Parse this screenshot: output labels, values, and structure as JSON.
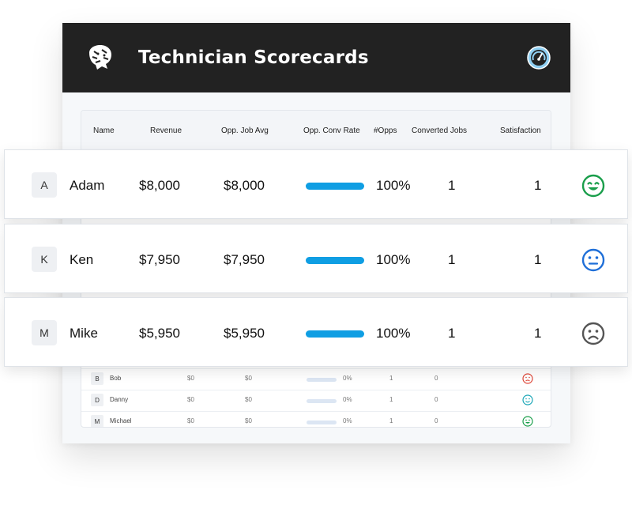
{
  "app": {
    "title": "Technician Scorecards",
    "logo_icon": "tiger-head-icon",
    "header_icon": "speedometer-icon"
  },
  "table": {
    "headers": {
      "name": "Name",
      "revenue": "Revenue",
      "avg": "Opp. Job Avg",
      "conv_rate": "Opp. Conv Rate",
      "opps": "#Opps",
      "converted": "Converted Jobs",
      "satisfaction": "Satisfaction"
    },
    "rows": [
      {
        "initial": "B",
        "name": "Bob",
        "revenue": "$0",
        "avg": "$0",
        "rate": "0%",
        "opps": "1",
        "converted": "0",
        "satisfaction": "sad",
        "rate_fraction": 0
      },
      {
        "initial": "D",
        "name": "Danny",
        "revenue": "$0",
        "avg": "$0",
        "rate": "0%",
        "opps": "1",
        "converted": "0",
        "satisfaction": "happy",
        "rate_fraction": 0
      },
      {
        "initial": "M",
        "name": "Michael",
        "revenue": "$0",
        "avg": "$0",
        "rate": "0%",
        "opps": "1",
        "converted": "0",
        "satisfaction": "very-happy",
        "rate_fraction": 0
      }
    ]
  },
  "cards": [
    {
      "initial": "A",
      "name": "Adam",
      "revenue": "$8,000",
      "avg": "$8,000",
      "rate": "100%",
      "rate_fraction": 1,
      "opps": "1",
      "converted": "1",
      "satisfaction": "very-happy"
    },
    {
      "initial": "K",
      "name": "Ken",
      "revenue": "$7,950",
      "avg": "$7,950",
      "rate": "100%",
      "rate_fraction": 1,
      "opps": "1",
      "converted": "1",
      "satisfaction": "neutral"
    },
    {
      "initial": "M",
      "name": "Mike",
      "revenue": "$5,950",
      "avg": "$5,950",
      "rate": "100%",
      "rate_fraction": 1,
      "opps": "1",
      "converted": "1",
      "satisfaction": "sad"
    }
  ],
  "colors": {
    "header_bg": "#222222",
    "bar": "#0f9ee3",
    "very_happy": "#1a9e4b",
    "neutral": "#1f6fd8",
    "sad_gray": "#555555",
    "sad_red": "#e0483a",
    "happy_teal": "#1aa6b7"
  }
}
